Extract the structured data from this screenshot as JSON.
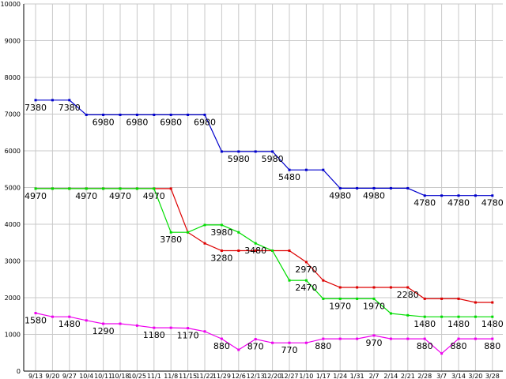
{
  "chart_data": {
    "type": "line",
    "title": "",
    "xlabel": "",
    "ylabel": "",
    "ylim": [
      0,
      10000
    ],
    "y_ticks": [
      0,
      1000,
      2000,
      3000,
      4000,
      5000,
      6000,
      7000,
      8000,
      9000,
      10000
    ],
    "grid": true,
    "legend": "none",
    "categories": [
      "9/13",
      "9/20",
      "9/27",
      "10/4",
      "10/11",
      "10/18",
      "10/25",
      "11/1",
      "11/8",
      "11/15",
      "11/22",
      "11/29",
      "12/6",
      "12/13",
      "12/20",
      "12/27",
      "1/10",
      "1/17",
      "1/24",
      "1/31",
      "2/7",
      "2/14",
      "2/21",
      "2/28",
      "3/7",
      "3/14",
      "3/20",
      "3/28"
    ],
    "series": [
      {
        "color": "#0000cc",
        "values": [
          7380,
          7380,
          7380,
          6980,
          6980,
          6980,
          6980,
          6980,
          6980,
          6980,
          6980,
          5980,
          5980,
          5980,
          5980,
          5480,
          5480,
          5480,
          4980,
          4980,
          4980,
          4980,
          4980,
          4780,
          4780,
          4780,
          4780,
          4780
        ],
        "label_index": [
          0,
          2,
          4,
          6,
          8,
          10,
          12,
          14,
          15,
          18,
          20,
          23,
          25,
          27
        ]
      },
      {
        "color": "#dd0000",
        "values": [
          4970,
          4970,
          4970,
          4970,
          4970,
          4970,
          4970,
          4970,
          4970,
          3780,
          3480,
          3280,
          3280,
          3280,
          3280,
          3280,
          2970,
          2470,
          2280,
          2280,
          2280,
          2280,
          2280,
          1970,
          1970,
          1970,
          1870,
          1870
        ],
        "label_index": [
          0,
          3,
          5,
          7,
          11,
          16,
          22
        ]
      },
      {
        "color": "#00dd00",
        "values": [
          4970,
          4970,
          4970,
          4970,
          4970,
          4970,
          4970,
          4970,
          3780,
          3780,
          3980,
          3980,
          3780,
          3480,
          3280,
          2470,
          2470,
          1970,
          1970,
          1970,
          1970,
          1570,
          1520,
          1480,
          1480,
          1480,
          1480,
          1480
        ],
        "label_index": [
          8,
          11,
          13,
          16,
          18,
          20,
          23,
          25,
          27
        ]
      },
      {
        "color": "#ee00ee",
        "values": [
          1580,
          1480,
          1480,
          1380,
          1290,
          1290,
          1240,
          1180,
          1180,
          1170,
          1080,
          880,
          580,
          870,
          770,
          770,
          770,
          880,
          880,
          880,
          970,
          880,
          880,
          880,
          480,
          880,
          880,
          880
        ],
        "label_index": [
          0,
          2,
          4,
          7,
          9,
          11,
          13,
          15,
          17,
          20,
          23,
          25,
          27
        ]
      }
    ]
  }
}
